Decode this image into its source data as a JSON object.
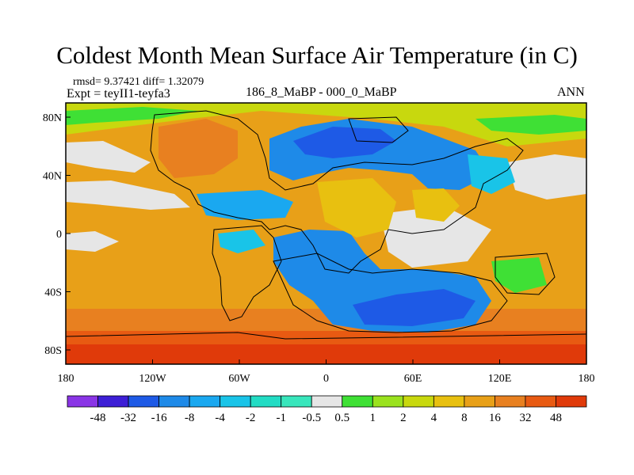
{
  "title": "Coldest Month Mean Surface Air Temperature (in C)",
  "stats": "rmsd= 9.37421  diff= 1.32079",
  "experiment": "Expt = teyII1-teyfa3",
  "period": "186_8_MaBP - 000_0_MaBP",
  "season": "ANN",
  "map": {
    "lat_ticks": [
      "80N",
      "40N",
      "0",
      "40S",
      "80S"
    ],
    "lon_ticks": [
      "180",
      "120W",
      "60W",
      "0",
      "60E",
      "120E",
      "180"
    ]
  },
  "colorbar": {
    "labels": [
      "-48",
      "-32",
      "-16",
      "-8",
      "-4",
      "-2",
      "-1",
      "-0.5",
      "0.5",
      "1",
      "2",
      "4",
      "8",
      "16",
      "32",
      "48"
    ],
    "colors": [
      "#8a35e6",
      "#3d1fd6",
      "#1e5ae6",
      "#1e8ae8",
      "#1aa8f0",
      "#19c4e8",
      "#22dcc4",
      "#38e6bc",
      "#e6e6e6",
      "#3fe035",
      "#9ae21e",
      "#c8d80e",
      "#e8c010",
      "#e8a018",
      "#e88020",
      "#e85a12",
      "#e03a0a"
    ]
  }
}
